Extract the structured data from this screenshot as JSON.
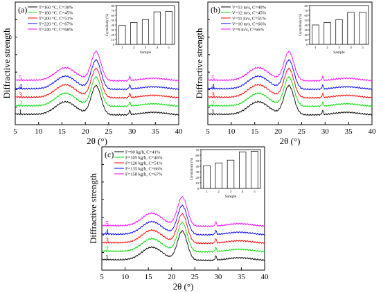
{
  "palette": [
    "#000000",
    "#00dd00",
    "#ff0000",
    "#0000ff",
    "#ff00ff"
  ],
  "chart_data": [
    {
      "type": "line",
      "panel_label": "(a)",
      "xlabel": "2θ (°)",
      "ylabel": "Diffractive strength",
      "xlim": [
        5,
        40
      ],
      "xticks": [
        5,
        10,
        15,
        20,
        25,
        30,
        35,
        40
      ],
      "legend_position": "top-left",
      "series": [
        {
          "name": "T=160  °C, C=39%",
          "label": "1",
          "baseline": 0.0
        },
        {
          "name": "T=180  °C, C=45%",
          "label": "2",
          "baseline": 0.6
        },
        {
          "name": "T=200  °C, C=51%",
          "label": "3",
          "baseline": 1.2
        },
        {
          "name": "T=220  °C, C=67%",
          "label": "4",
          "baseline": 1.8
        },
        {
          "name": "T=240  °C, C=68%",
          "label": "5",
          "baseline": 2.4
        }
      ],
      "inset": {
        "type": "bar",
        "xlabel": "Sample",
        "ylabel": "Crystallinity (%)",
        "categories": [
          "1",
          "2",
          "3",
          "4",
          "5"
        ],
        "values": [
          39,
          45,
          51,
          67,
          68
        ],
        "ylim": [
          0,
          80
        ],
        "yticks": [
          0,
          10,
          20,
          30,
          40,
          50,
          60,
          70,
          80
        ]
      }
    },
    {
      "type": "line",
      "panel_label": "(b)",
      "xlabel": "2θ (°)",
      "ylabel": "Diffractive strength",
      "xlim": [
        5,
        40
      ],
      "xticks": [
        5,
        10,
        15,
        20,
        25,
        30,
        35,
        40
      ],
      "legend_position": "top-left",
      "series": [
        {
          "name": "V=13  m/s, C=40%",
          "label": "1",
          "baseline": 0.0
        },
        {
          "name": "V=12  m/s, C=45%",
          "label": "2",
          "baseline": 0.6
        },
        {
          "name": "V=11  m/s, C=51%",
          "label": "3",
          "baseline": 1.2
        },
        {
          "name": "V=10  m/s, C=66%",
          "label": "4",
          "baseline": 1.8
        },
        {
          "name": "V=9    m/s, C=66%",
          "label": "5",
          "baseline": 2.4
        }
      ],
      "inset": {
        "type": "bar",
        "xlabel": "Sample",
        "ylabel": "Crystallinity (%)",
        "categories": [
          "1",
          "2",
          "3",
          "4",
          "5"
        ],
        "values": [
          40,
          45,
          51,
          66,
          66
        ],
        "ylim": [
          0,
          80
        ],
        "yticks": [
          0,
          10,
          20,
          30,
          40,
          50,
          60,
          70,
          80
        ]
      }
    },
    {
      "type": "line",
      "panel_label": "(c)",
      "xlabel": "2θ (°)",
      "ylabel": "Diffractive strength",
      "xlim": [
        5,
        40
      ],
      "xticks": [
        5,
        10,
        15,
        20,
        25,
        30,
        35,
        40
      ],
      "legend_position": "top-left",
      "series": [
        {
          "name": "F=90    kg/h, C=41%",
          "label": "1",
          "baseline": 0.0
        },
        {
          "name": "F=105  kg/h, C=46%",
          "label": "2",
          "baseline": 0.6
        },
        {
          "name": "F=120  kg/h, C=51%",
          "label": "3",
          "baseline": 1.2
        },
        {
          "name": "F=135  kg/h, C=66%",
          "label": "4",
          "baseline": 1.8
        },
        {
          "name": "F=150  kg/h, C=67%",
          "label": "5",
          "baseline": 2.4
        }
      ],
      "inset": {
        "type": "bar",
        "xlabel": "Sample",
        "ylabel": "Crystallinity (%)",
        "categories": [
          "1",
          "2",
          "3",
          "4",
          "5"
        ],
        "values": [
          41,
          46,
          51,
          66,
          67
        ],
        "ylim": [
          0,
          70
        ],
        "yticks": [
          0,
          10,
          20,
          30,
          40,
          50,
          60,
          70
        ]
      }
    }
  ]
}
